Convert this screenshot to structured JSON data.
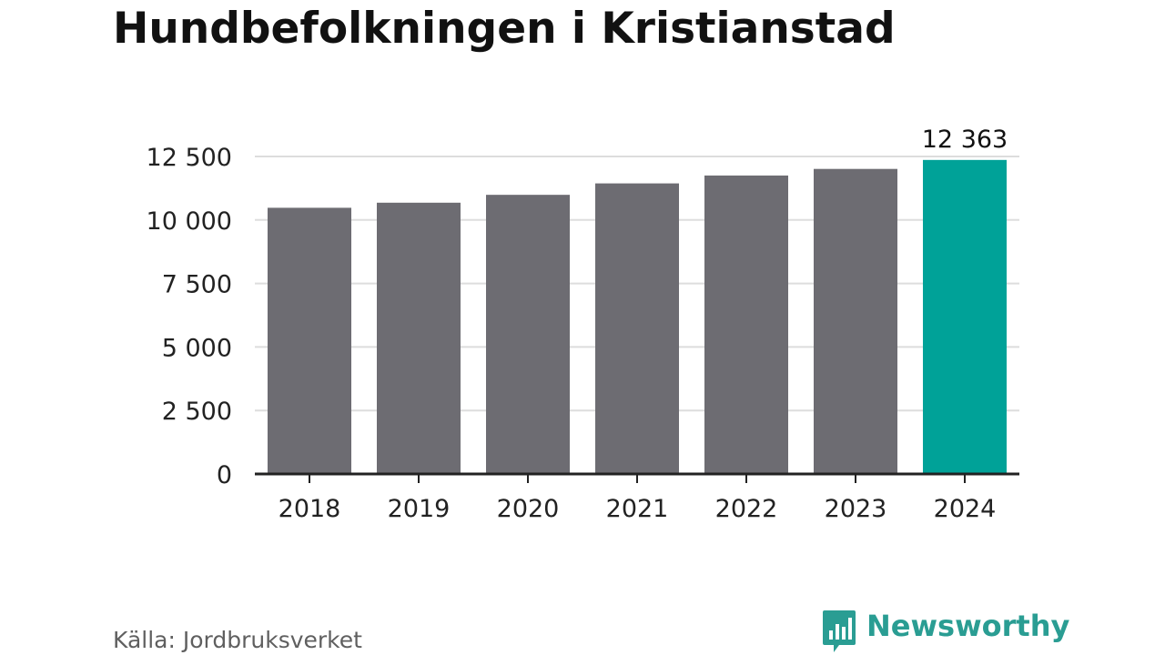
{
  "chart_data": {
    "type": "bar",
    "title": "Hundbefolkningen i Kristianstad",
    "xlabel": "",
    "ylabel": "",
    "categories": [
      "2018",
      "2019",
      "2020",
      "2021",
      "2022",
      "2023",
      "2024"
    ],
    "values": [
      10480,
      10680,
      10990,
      11440,
      11750,
      12010,
      12363
    ],
    "ylim": [
      0,
      12500
    ],
    "yticks": [
      0,
      2500,
      5000,
      7500,
      10000,
      12500
    ],
    "ytick_labels": [
      "0",
      "2 500",
      "5 000",
      "7 500",
      "10 000",
      "12 500"
    ],
    "data_labels": [
      {
        "category": "2024",
        "text": "12 363"
      }
    ],
    "grid": true,
    "colors": {
      "default_bar": "#6d6c72",
      "highlight_bar": "#00a298",
      "grid": "#dddddd",
      "axis": "#222222"
    },
    "highlight_category": "2024"
  },
  "footer": {
    "source": "Källa: Jordbruksverket",
    "brand": "Newsworthy",
    "brand_color": "#2a9d93",
    "brand_icon": "bar-chart-speech-bubble-icon"
  }
}
